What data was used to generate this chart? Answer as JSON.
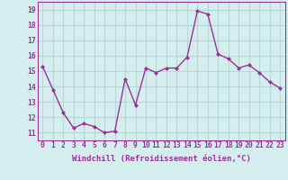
{
  "x": [
    0,
    1,
    2,
    3,
    4,
    5,
    6,
    7,
    8,
    9,
    10,
    11,
    12,
    13,
    14,
    15,
    16,
    17,
    18,
    19,
    20,
    21,
    22,
    23
  ],
  "y": [
    15.3,
    13.8,
    12.3,
    11.3,
    11.6,
    11.4,
    11.0,
    11.1,
    14.5,
    12.8,
    15.2,
    14.9,
    15.2,
    15.2,
    15.9,
    18.9,
    18.7,
    16.1,
    15.8,
    15.2,
    15.4,
    14.9,
    14.3,
    13.9
  ],
  "line_color": "#993399",
  "marker": "D",
  "marker_size": 2.0,
  "bg_color": "#d4eeee",
  "grid_color": "#b8d8d8",
  "xlabel": "Windchill (Refroidissement éolien,°C)",
  "xlabel_fontsize": 6.5,
  "ylabel_ticks": [
    11,
    12,
    13,
    14,
    15,
    16,
    17,
    18,
    19
  ],
  "ylim": [
    10.5,
    19.5
  ],
  "xlim": [
    -0.5,
    23.5
  ],
  "tick_fontsize": 5.8,
  "linewidth": 1.0
}
